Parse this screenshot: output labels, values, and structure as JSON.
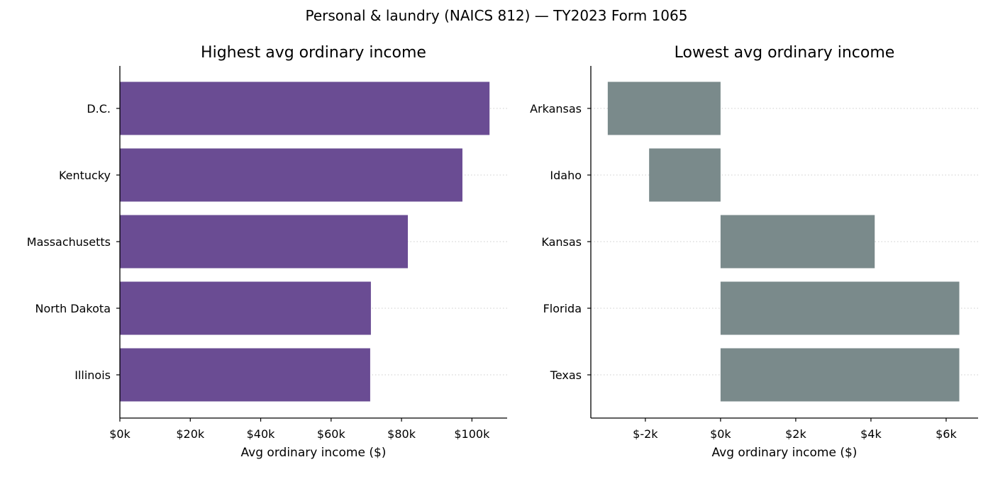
{
  "suptitle": "Personal & laundry (NAICS 812) — TY2023 Form 1065",
  "chart_data": [
    {
      "type": "bar",
      "orientation": "horizontal",
      "title": "Highest avg ordinary income",
      "xlabel": "Avg ordinary income ($)",
      "ylabel": "",
      "categories": [
        "D.C.",
        "Kentucky",
        "Massachusetts",
        "North Dakota",
        "Illinois"
      ],
      "values": [
        105000,
        97300,
        81800,
        71300,
        71100
      ],
      "xlim": [
        0,
        110000
      ],
      "xticks": [
        0,
        20000,
        40000,
        60000,
        80000,
        100000
      ],
      "xtick_labels": [
        "$0k",
        "$20k",
        "$40k",
        "$60k",
        "$80k",
        "$100k"
      ],
      "bar_color": "#6a4c93",
      "grid": "horizontal dotted",
      "legend": "none"
    },
    {
      "type": "bar",
      "orientation": "horizontal",
      "title": "Lowest avg ordinary income",
      "xlabel": "Avg ordinary income ($)",
      "ylabel": "",
      "categories": [
        "Arkansas",
        "Idaho",
        "Kansas",
        "Florida",
        "Texas"
      ],
      "values": [
        -3000,
        -1900,
        4100,
        6350,
        6350
      ],
      "xlim": [
        -3450,
        6850
      ],
      "xticks": [
        -2000,
        0,
        2000,
        4000,
        6000
      ],
      "xtick_labels": [
        "$-2k",
        "$0k",
        "$2k",
        "$4k",
        "$6k"
      ],
      "bar_color": "#7a8a8b",
      "grid": "horizontal dotted",
      "legend": "none"
    }
  ]
}
